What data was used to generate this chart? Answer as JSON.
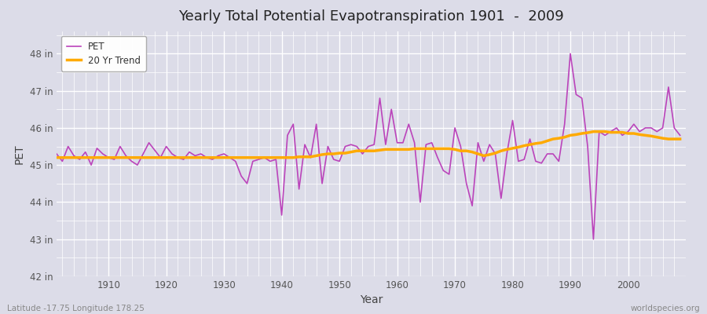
{
  "title": "Yearly Total Potential Evapotranspiration 1901  -  2009",
  "xlabel": "Year",
  "ylabel": "PET",
  "bottom_left_label": "Latitude -17.75 Longitude 178.25",
  "bottom_right_label": "worldspecies.org",
  "pet_color": "#bb44bb",
  "trend_color": "#ffaa00",
  "background_color": "#dcdce8",
  "plot_bg_color": "#dcdce8",
  "grid_color": "#ffffff",
  "ylim": [
    42.0,
    48.6
  ],
  "yticks": [
    42,
    43,
    44,
    45,
    46,
    47,
    48
  ],
  "ytick_labels": [
    "42 in",
    "43 in",
    "44 in",
    "45 in",
    "46 in",
    "47 in",
    "48 in"
  ],
  "xlim": [
    1901,
    2010
  ],
  "xticks": [
    1910,
    1920,
    1930,
    1940,
    1950,
    1960,
    1970,
    1980,
    1990,
    2000
  ],
  "years": [
    1901,
    1902,
    1903,
    1904,
    1905,
    1906,
    1907,
    1908,
    1909,
    1910,
    1911,
    1912,
    1913,
    1914,
    1915,
    1916,
    1917,
    1918,
    1919,
    1920,
    1921,
    1922,
    1923,
    1924,
    1925,
    1926,
    1927,
    1928,
    1929,
    1930,
    1931,
    1932,
    1933,
    1934,
    1935,
    1936,
    1937,
    1938,
    1939,
    1940,
    1941,
    1942,
    1943,
    1944,
    1945,
    1946,
    1947,
    1948,
    1949,
    1950,
    1951,
    1952,
    1953,
    1954,
    1955,
    1956,
    1957,
    1958,
    1959,
    1960,
    1961,
    1962,
    1963,
    1964,
    1965,
    1966,
    1967,
    1968,
    1969,
    1970,
    1971,
    1972,
    1973,
    1974,
    1975,
    1976,
    1977,
    1978,
    1979,
    1980,
    1981,
    1982,
    1983,
    1984,
    1985,
    1986,
    1987,
    1988,
    1989,
    1990,
    1991,
    1992,
    1993,
    1994,
    1995,
    1996,
    1997,
    1998,
    1999,
    2000,
    2001,
    2002,
    2003,
    2004,
    2005,
    2006,
    2007,
    2008,
    2009
  ],
  "pet_values": [
    45.3,
    45.1,
    45.5,
    45.25,
    45.15,
    45.35,
    45.0,
    45.45,
    45.3,
    45.2,
    45.15,
    45.5,
    45.25,
    45.1,
    45.0,
    45.3,
    45.6,
    45.4,
    45.2,
    45.5,
    45.3,
    45.2,
    45.15,
    45.35,
    45.25,
    45.3,
    45.2,
    45.15,
    45.25,
    45.3,
    45.2,
    45.1,
    44.7,
    44.5,
    45.1,
    45.15,
    45.2,
    45.1,
    45.15,
    43.65,
    45.8,
    46.1,
    44.35,
    45.55,
    45.2,
    46.1,
    44.5,
    45.5,
    45.15,
    45.1,
    45.5,
    45.55,
    45.5,
    45.3,
    45.5,
    45.55,
    46.8,
    45.55,
    46.5,
    45.6,
    45.6,
    46.1,
    45.6,
    44.0,
    45.55,
    45.6,
    45.2,
    44.85,
    44.75,
    46.0,
    45.5,
    44.5,
    43.9,
    45.6,
    45.1,
    45.55,
    45.3,
    44.1,
    45.3,
    46.2,
    45.1,
    45.15,
    45.7,
    45.1,
    45.05,
    45.3,
    45.3,
    45.1,
    46.1,
    48.0,
    46.9,
    46.8,
    45.5,
    43.0,
    45.9,
    45.8,
    45.9,
    46.0,
    45.8,
    45.9,
    46.1,
    45.9,
    46.0,
    46.0,
    45.9,
    46.0,
    47.1,
    46.0,
    45.8
  ],
  "trend_values": [
    45.2,
    45.2,
    45.2,
    45.2,
    45.2,
    45.2,
    45.2,
    45.2,
    45.2,
    45.2,
    45.2,
    45.2,
    45.2,
    45.2,
    45.2,
    45.2,
    45.2,
    45.2,
    45.2,
    45.2,
    45.2,
    45.2,
    45.2,
    45.2,
    45.2,
    45.2,
    45.2,
    45.2,
    45.2,
    45.2,
    45.2,
    45.2,
    45.2,
    45.2,
    45.2,
    45.2,
    45.2,
    45.2,
    45.2,
    45.2,
    45.2,
    45.2,
    45.22,
    45.22,
    45.22,
    45.25,
    45.28,
    45.3,
    45.3,
    45.32,
    45.32,
    45.35,
    45.38,
    45.38,
    45.38,
    45.38,
    45.4,
    45.42,
    45.42,
    45.42,
    45.42,
    45.42,
    45.44,
    45.44,
    45.44,
    45.44,
    45.44,
    45.44,
    45.44,
    45.42,
    45.38,
    45.38,
    45.35,
    45.3,
    45.25,
    45.28,
    45.32,
    45.38,
    45.42,
    45.45,
    45.48,
    45.52,
    45.55,
    45.58,
    45.6,
    45.65,
    45.7,
    45.72,
    45.75,
    45.8,
    45.82,
    45.85,
    45.87,
    45.9,
    45.9,
    45.9,
    45.88,
    45.88,
    45.88,
    45.85,
    45.85,
    45.82,
    45.8,
    45.78,
    45.75,
    45.72,
    45.7,
    45.7,
    45.7
  ]
}
